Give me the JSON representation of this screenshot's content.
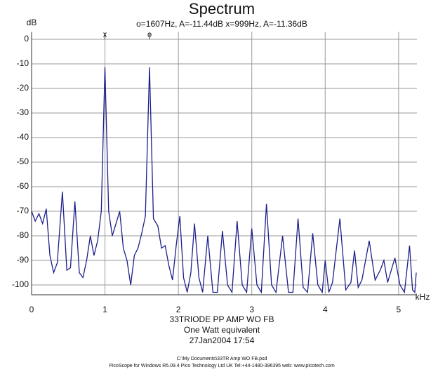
{
  "chart_data": {
    "type": "line",
    "title": "Spectrum",
    "subtitle": "o=1607Hz, A=-11.44dB  x=999Hz, A=-11.36dB",
    "y_label": "dB",
    "x_label": "kHz",
    "annotations": [
      "33TRIODE PP AMP WO FB",
      "One Watt equivalent",
      "27Jan2004  17:54"
    ],
    "footer": [
      "C:\\My Documents\\33TR Amp WO FB.psd",
      "PicoScope for Windows R5.09.4 Pico Technology Ltd UK Tel:+44-1480-396395  web: www.picotech.com"
    ],
    "cursors": [
      {
        "symbol": "x",
        "x": 0.999
      },
      {
        "symbol": "o",
        "x": 1.607
      }
    ],
    "xlim": [
      0,
      5.25
    ],
    "xticks": [
      0,
      1,
      2,
      3,
      4,
      5
    ],
    "ylim": [
      -104,
      3
    ],
    "yticks": [
      0,
      -10,
      -20,
      -30,
      -40,
      -50,
      -60,
      -70,
      -80,
      -90,
      -100
    ],
    "grid": true,
    "series": [
      {
        "color": "#1c1f8a",
        "x": [
          0,
          0.05,
          0.1,
          0.15,
          0.2,
          0.25,
          0.3,
          0.35,
          0.42,
          0.48,
          0.53,
          0.59,
          0.65,
          0.7,
          0.75,
          0.8,
          0.85,
          0.9,
          0.95,
          0.999,
          1.05,
          1.1,
          1.15,
          1.2,
          1.25,
          1.3,
          1.35,
          1.4,
          1.45,
          1.5,
          1.55,
          1.607,
          1.66,
          1.72,
          1.77,
          1.82,
          1.87,
          1.92,
          1.97,
          2.02,
          2.07,
          2.12,
          2.17,
          2.22,
          2.28,
          2.33,
          2.4,
          2.47,
          2.53,
          2.6,
          2.67,
          2.73,
          2.8,
          2.87,
          2.93,
          3.0,
          3.07,
          3.13,
          3.2,
          3.27,
          3.33,
          3.42,
          3.5,
          3.56,
          3.63,
          3.7,
          3.76,
          3.83,
          3.9,
          3.96,
          4.0,
          4.05,
          4.1,
          4.2,
          4.28,
          4.35,
          4.4,
          4.45,
          4.5,
          4.6,
          4.68,
          4.75,
          4.8,
          4.85,
          4.95,
          5.02,
          5.08,
          5.15,
          5.19,
          5.22,
          5.24
        ],
        "values": [
          -70,
          -74,
          -71,
          -75,
          -69,
          -88,
          -95,
          -91,
          -62,
          -94,
          -93,
          -66,
          -95,
          -97,
          -90,
          -80,
          -88,
          -82,
          -70,
          -11.36,
          -70,
          -80,
          -75,
          -70,
          -85,
          -90,
          -100,
          -88,
          -85,
          -79,
          -72,
          -11.44,
          -73,
          -76,
          -85,
          -84,
          -92,
          -98,
          -84,
          -72,
          -97,
          -103,
          -95,
          -75,
          -97,
          -103,
          -80,
          -103,
          -103,
          -78,
          -100,
          -103,
          -74,
          -100,
          -103,
          -77,
          -100,
          -103,
          -67,
          -100,
          -103,
          -80,
          -103,
          -103,
          -73,
          -101,
          -103,
          -79,
          -100,
          -103,
          -90,
          -103,
          -99,
          -73,
          -102,
          -99,
          -86,
          -101,
          -98,
          -82,
          -98,
          -94,
          -90,
          -99,
          -89,
          -100,
          -103,
          -84,
          -102,
          -103,
          -95
        ]
      }
    ]
  }
}
